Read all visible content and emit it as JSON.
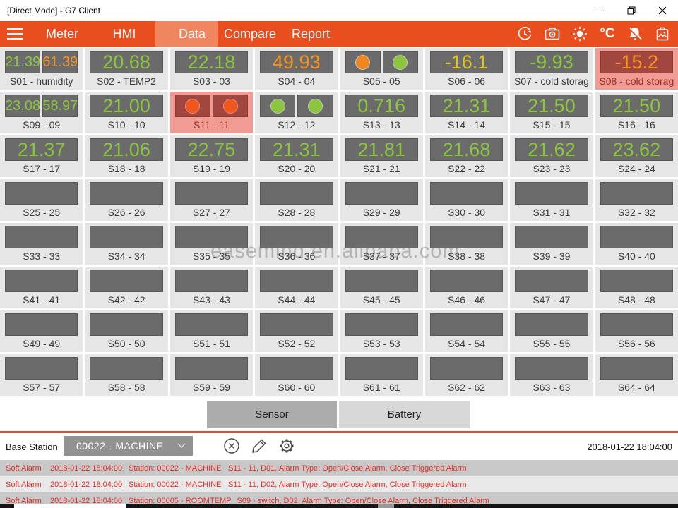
{
  "window": {
    "title": "[Direct Mode] - G7 Client"
  },
  "nav": {
    "tabs": [
      {
        "label": "Meter",
        "active": false
      },
      {
        "label": "HMI",
        "active": false
      },
      {
        "label": "Data",
        "active": true
      },
      {
        "label": "Compare",
        "active": false
      },
      {
        "label": "Report",
        "active": false
      }
    ],
    "icons": [
      "history-icon",
      "camera-icon",
      "brightness-icon",
      "celsius-icon",
      "alarm-mute-icon",
      "image-bin-icon"
    ],
    "celsius_label": "°C"
  },
  "colors": {
    "nav_orange": "#E94E1E",
    "nav_active_tab": "#EF8660",
    "value_green": "#8CC63F",
    "value_orange": "#F6921E",
    "value_yellow": "#E2C31C",
    "alarm_cell_bg": "#F09C95",
    "alarm_box_bg": "#A24740",
    "alarm_text": "#E43028"
  },
  "tiles": [
    {
      "label": "S01 - humidity",
      "type": "split",
      "values": [
        "21.39",
        "61.39"
      ],
      "value_colors": [
        "green",
        "orange"
      ]
    },
    {
      "label": "S02 - TEMP2",
      "type": "value",
      "value": "20.68",
      "value_colors": [
        "green"
      ]
    },
    {
      "label": "S03 - 03",
      "type": "value",
      "value": "22.18",
      "value_colors": [
        "green"
      ]
    },
    {
      "label": "S04 - 04",
      "type": "value",
      "value": "49.93",
      "value_colors": [
        "orange"
      ]
    },
    {
      "label": "S05 - 05",
      "type": "leds",
      "value_colors": [
        "orange",
        "green"
      ]
    },
    {
      "label": "S06 - 06",
      "type": "value",
      "value": "-16.1",
      "value_colors": [
        "yellow"
      ]
    },
    {
      "label": "S07 - cold storag",
      "type": "value",
      "value": "-9.93",
      "value_colors": [
        "green"
      ]
    },
    {
      "label": "S08 - cold storag",
      "type": "value",
      "value": "-15.2",
      "value_colors": [
        "orange"
      ],
      "alarm": true
    },
    {
      "label": "S09 - 09",
      "type": "split",
      "values": [
        "23.08",
        "58.97"
      ],
      "value_colors": [
        "green",
        "green"
      ]
    },
    {
      "label": "S10 - 10",
      "type": "value",
      "value": "21.00",
      "value_colors": [
        "green"
      ]
    },
    {
      "label": "S11 - 11",
      "type": "leds",
      "value_colors": [
        "orange",
        "orange"
      ],
      "alarm": true
    },
    {
      "label": "S12 - 12",
      "type": "leds",
      "value_colors": [
        "green",
        "green"
      ]
    },
    {
      "label": "S13 - 13",
      "type": "value",
      "value": "0.716",
      "value_colors": [
        "green"
      ]
    },
    {
      "label": "S14 - 14",
      "type": "value",
      "value": "21.31",
      "value_colors": [
        "green"
      ]
    },
    {
      "label": "S15 - 15",
      "type": "value",
      "value": "21.50",
      "value_colors": [
        "green"
      ]
    },
    {
      "label": "S16 - 16",
      "type": "value",
      "value": "21.50",
      "value_colors": [
        "green"
      ]
    },
    {
      "label": "S17 - 17",
      "type": "value",
      "value": "21.37",
      "value_colors": [
        "green"
      ]
    },
    {
      "label": "S18 - 18",
      "type": "value",
      "value": "21.06",
      "value_colors": [
        "green"
      ]
    },
    {
      "label": "S19 - 19",
      "type": "value",
      "value": "22.75",
      "value_colors": [
        "green"
      ]
    },
    {
      "label": "S20 - 20",
      "type": "value",
      "value": "21.31",
      "value_colors": [
        "green"
      ]
    },
    {
      "label": "S21 - 21",
      "type": "value",
      "value": "21.81",
      "value_colors": [
        "green"
      ]
    },
    {
      "label": "S22 - 22",
      "type": "value",
      "value": "21.68",
      "value_colors": [
        "green"
      ]
    },
    {
      "label": "S23 - 23",
      "type": "value",
      "value": "21.62",
      "value_colors": [
        "green"
      ]
    },
    {
      "label": "S24 - 24",
      "type": "value",
      "value": "23.62",
      "value_colors": [
        "green"
      ]
    },
    {
      "label": "S25 - 25",
      "type": "empty"
    },
    {
      "label": "S26 - 26",
      "type": "empty"
    },
    {
      "label": "S27 - 27",
      "type": "empty"
    },
    {
      "label": "S28 - 28",
      "type": "empty"
    },
    {
      "label": "S29 - 29",
      "type": "empty"
    },
    {
      "label": "S30 - 30",
      "type": "empty"
    },
    {
      "label": "S31 - 31",
      "type": "empty"
    },
    {
      "label": "S32 - 32",
      "type": "empty"
    },
    {
      "label": "S33 - 33",
      "type": "empty"
    },
    {
      "label": "S34 - 34",
      "type": "empty"
    },
    {
      "label": "S35 - 35",
      "type": "empty"
    },
    {
      "label": "S36 - 36",
      "type": "empty"
    },
    {
      "label": "S37 - 37",
      "type": "empty"
    },
    {
      "label": "S38 - 38",
      "type": "empty"
    },
    {
      "label": "S39 - 39",
      "type": "empty"
    },
    {
      "label": "S40 - 40",
      "type": "empty"
    },
    {
      "label": "S41 - 41",
      "type": "empty"
    },
    {
      "label": "S42 - 42",
      "type": "empty"
    },
    {
      "label": "S43 - 43",
      "type": "empty"
    },
    {
      "label": "S44 - 44",
      "type": "empty"
    },
    {
      "label": "S45 - 45",
      "type": "empty"
    },
    {
      "label": "S46 - 46",
      "type": "empty"
    },
    {
      "label": "S47 - 47",
      "type": "empty"
    },
    {
      "label": "S48 - 48",
      "type": "empty"
    },
    {
      "label": "S49 - 49",
      "type": "empty"
    },
    {
      "label": "S50 - 50",
      "type": "empty"
    },
    {
      "label": "S51 - 51",
      "type": "empty"
    },
    {
      "label": "S52 - 52",
      "type": "empty"
    },
    {
      "label": "S53 - 53",
      "type": "empty"
    },
    {
      "label": "S54 - 54",
      "type": "empty"
    },
    {
      "label": "S55 - 55",
      "type": "empty"
    },
    {
      "label": "S56 - 56",
      "type": "empty"
    },
    {
      "label": "S57 - 57",
      "type": "empty"
    },
    {
      "label": "S58 - 58",
      "type": "empty"
    },
    {
      "label": "S59 - 59",
      "type": "empty"
    },
    {
      "label": "S60 - 60",
      "type": "empty"
    },
    {
      "label": "S61 - 61",
      "type": "empty"
    },
    {
      "label": "S62 - 62",
      "type": "empty"
    },
    {
      "label": "S63 - 63",
      "type": "empty"
    },
    {
      "label": "S64 - 64",
      "type": "empty"
    }
  ],
  "watermark": {
    "text": "easemind.en.alibaba.com"
  },
  "footer": {
    "sensor_label": "Sensor",
    "battery_label": "Battery",
    "base_station_label": "Base Station",
    "base_station_value": "00022 - MACHINE",
    "timestamp": "2018-01-22 18:04:00"
  },
  "alarms": [
    {
      "type": "Soft Alarm",
      "time": "2018-01-22 18:04:00",
      "station": "Station: 00022 - MACHINE",
      "detail": "S11 - 11, D01, Alarm Type: Open/Close Alarm, Close Triggered Alarm"
    },
    {
      "type": "Soft Alarm",
      "time": "2018-01-22 18:04:00",
      "station": "Station: 00022 - MACHINE",
      "detail": "S11 - 11, D02, Alarm Type: Open/Close Alarm, Close Triggered Alarm"
    },
    {
      "type": "Soft Alarm",
      "time": "2018-01-22 18:04:00",
      "station": "Station: 00005 - ROOMTEMP",
      "detail": "S09 - switch, D02, Alarm Type: Open/Close Alarm, Close Triggered Alarm"
    }
  ]
}
